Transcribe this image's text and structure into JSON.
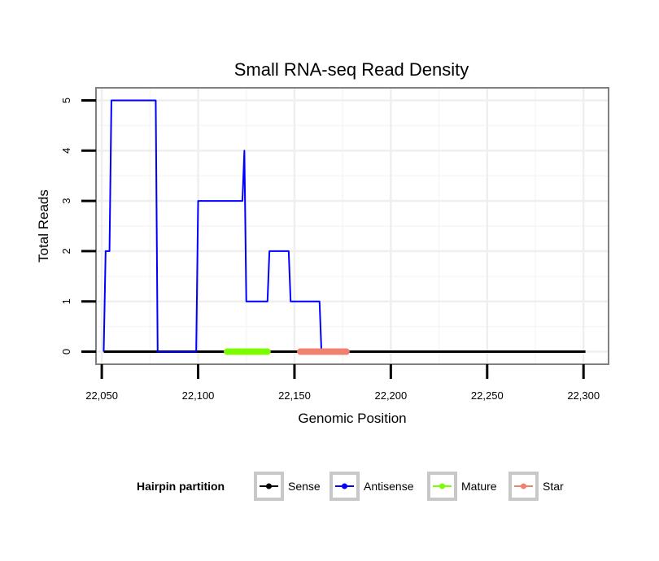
{
  "chart_data": {
    "type": "line",
    "title": "Small RNA-seq Read Density",
    "xlabel": "Genomic Position",
    "ylabel": "Total Reads",
    "xlim": [
      22047,
      22313
    ],
    "ylim": [
      -0.25,
      5.25
    ],
    "x_ticks": [
      22050,
      22100,
      22150,
      22200,
      22250,
      22300
    ],
    "x_tick_labels": [
      "22,050",
      "22,100",
      "22,150",
      "22,200",
      "22,250",
      "22,300"
    ],
    "y_ticks": [
      0,
      1,
      2,
      3,
      4,
      5
    ],
    "y_tick_labels": [
      "0",
      "1",
      "2",
      "3",
      "4",
      "5"
    ],
    "grid": true,
    "legend": {
      "title": "Hairpin partition",
      "position": "bottom",
      "entries": [
        "Sense",
        "Antisense",
        "Mature",
        "Star"
      ]
    },
    "series": [
      {
        "name": "Sense",
        "color": "#000000",
        "x": [
          22051,
          22301
        ],
        "y": [
          0,
          0
        ]
      },
      {
        "name": "Antisense",
        "color": "#0000ff",
        "x": [
          22051,
          22052,
          22053,
          22054,
          22055,
          22077,
          22078,
          22079,
          22098,
          22099,
          22100,
          22123,
          22124,
          22125,
          22126,
          22135,
          22136,
          22137,
          22146,
          22147,
          22148,
          22162,
          22163,
          22164
        ],
        "y": [
          0,
          2,
          2,
          2,
          5,
          5,
          5,
          0,
          0,
          0,
          3,
          3,
          4,
          1,
          1,
          1,
          1,
          2,
          2,
          2,
          1,
          1,
          1,
          0
        ]
      },
      {
        "name": "Mature",
        "color": "#7cfc00",
        "x": [
          22115,
          22136
        ],
        "y": [
          0,
          0
        ]
      },
      {
        "name": "Star",
        "color": "#f08070",
        "x": [
          22153,
          22177
        ],
        "y": [
          0,
          0
        ]
      }
    ]
  }
}
